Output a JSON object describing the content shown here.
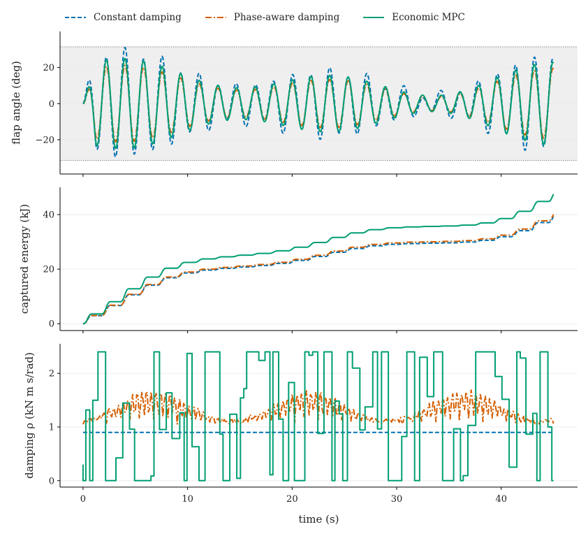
{
  "chart_data": [
    {
      "type": "line",
      "ylabel": "flap angle (deg)",
      "xlim": [
        -2.2,
        47.3
      ],
      "ylim": [
        -39,
        40
      ],
      "yticks": [
        -20,
        0,
        20
      ],
      "grid": "horizontal",
      "shaded_band": [
        -31.5,
        31.5
      ],
      "legend": "top, outside",
      "series": [
        {
          "name": "Constant damping",
          "color": "#0072B2",
          "style": "dashed",
          "generator": {
            "kind": "wave",
            "amp_scale": 1.15
          }
        },
        {
          "name": "Phase-aware damping",
          "color": "#D55E00",
          "style": "dashdot",
          "generator": {
            "kind": "wave",
            "amp_scale": 0.85
          }
        },
        {
          "name": "Economic MPC",
          "color": "#009E73",
          "style": "solid",
          "generator": {
            "kind": "wave",
            "amp_scale": 1.0
          }
        }
      ],
      "x_end": 45
    },
    {
      "type": "line",
      "ylabel": "captured energy (kJ)",
      "xlim": [
        -2.2,
        47.3
      ],
      "ylim": [
        -2.5,
        50
      ],
      "yticks": [
        0,
        20,
        40
      ],
      "grid": "horizontal",
      "series": [
        {
          "name": "Constant damping",
          "color": "#0072B2",
          "style": "dashed",
          "final": 39.3
        },
        {
          "name": "Phase-aware damping",
          "color": "#D55E00",
          "style": "dashdot",
          "final": 40.0
        },
        {
          "name": "Economic MPC",
          "color": "#009E73",
          "style": "solid",
          "final": 47.5
        }
      ]
    },
    {
      "type": "line",
      "ylabel": "damping ρ (kN m s/rad)",
      "xlabel": "time (s)",
      "xlim": [
        -2.2,
        47.3
      ],
      "ylim": [
        -0.12,
        2.55
      ],
      "yticks": [
        0,
        1,
        2
      ],
      "xticks": [
        0,
        10,
        20,
        30,
        40
      ],
      "grid": "horizontal",
      "series": [
        {
          "name": "Constant damping",
          "color": "#0072B2",
          "style": "dashed",
          "constant": 0.9
        },
        {
          "name": "Phase-aware damping",
          "color": "#D55E00",
          "style": "dashdot",
          "range": [
            0.95,
            1.8
          ]
        },
        {
          "name": "Economic MPC",
          "color": "#009E73",
          "style": "solid",
          "range": [
            0,
            2.4
          ]
        }
      ]
    }
  ],
  "legend": {
    "items": [
      {
        "label": "Constant damping",
        "color": "#0072B2",
        "dash": "6,3"
      },
      {
        "label": "Phase-aware damping",
        "color": "#D55E00",
        "dash": "9,3,2,3"
      },
      {
        "label": "Economic MPC",
        "color": "#009E73",
        "dash": ""
      }
    ]
  },
  "colors": {
    "grid": "#e8e8e8",
    "band": "#efefef",
    "band_edge": "#888888",
    "axis": "#000000"
  }
}
